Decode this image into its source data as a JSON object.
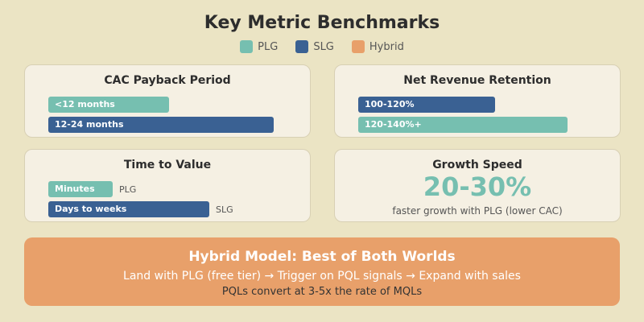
{
  "title": "Key Metric Benchmarks",
  "colors": {
    "plg": "#76bfb0",
    "slg": "#3a6193",
    "hybrid": "#e8a06a",
    "background": "#ebe4c4",
    "card": "#f5f0e3"
  },
  "legend": [
    {
      "label": "PLG",
      "color": "#76bfb0"
    },
    {
      "label": "SLG",
      "color": "#3a6193"
    },
    {
      "label": "Hybrid",
      "color": "#e8a06a"
    }
  ],
  "cac": {
    "title": "CAC Payback Period",
    "bars": [
      {
        "label": "<12 months",
        "series": "PLG"
      },
      {
        "label": "12-24 months",
        "series": "SLG"
      }
    ]
  },
  "nrr": {
    "title": "Net Revenue Retention",
    "bars": [
      {
        "label": "100-120%",
        "series": "SLG"
      },
      {
        "label": "120-140%+",
        "series": "PLG"
      }
    ]
  },
  "ttv": {
    "title": "Time to Value",
    "bars": [
      {
        "label": "Minutes",
        "series": "PLG",
        "side": "PLG"
      },
      {
        "label": "Days to weeks",
        "series": "SLG",
        "side": "SLG"
      }
    ]
  },
  "growth": {
    "title": "Growth Speed",
    "value": "20-30%",
    "caption": "faster growth with PLG (lower CAC)"
  },
  "hybrid": {
    "title": "Hybrid Model: Best of Both Worlds",
    "flow": "Land with PLG (free tier) → Trigger on PQL signals → Expand with sales",
    "note": "PQLs convert at 3-5x the rate of MQLs"
  }
}
